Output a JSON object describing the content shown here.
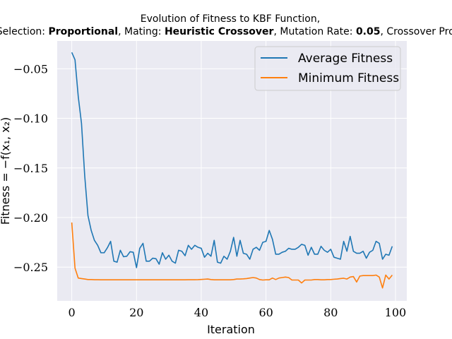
{
  "chart_data": {
    "type": "line",
    "title_line1": "Evolution of Fitness to KBF Function,",
    "title_line2": [
      {
        "text": "Selection: ",
        "bold": false
      },
      {
        "text": "Proportional",
        "bold": true
      },
      {
        "text": ", Mating: ",
        "bold": false
      },
      {
        "text": "Heuristic Crossover",
        "bold": true
      },
      {
        "text": ", Mutation Rate: ",
        "bold": false
      },
      {
        "text": "0.05",
        "bold": true
      },
      {
        "text": ", Crossover Prob: ",
        "bold": false
      }
    ],
    "xlabel": "Iteration",
    "ylabel": "Fitness = −f(x₁, x₂)",
    "xlim": [
      -4.5,
      103.5
    ],
    "ylim": [
      -0.284,
      -0.022
    ],
    "xticks": [
      0,
      20,
      40,
      60,
      80,
      100
    ],
    "xtick_labels": [
      "0",
      "20",
      "40",
      "60",
      "80",
      "100"
    ],
    "yticks": [
      -0.05,
      -0.1,
      -0.15,
      -0.2,
      -0.25
    ],
    "ytick_labels": [
      "−0.05",
      "−0.10",
      "−0.15",
      "−0.20",
      "−0.25"
    ],
    "grid": true,
    "legend_position": "top-right",
    "series": [
      {
        "name": "Average Fitness",
        "color": "#1f77b4",
        "values": [
          -0.0335,
          -0.041,
          -0.078,
          -0.105,
          -0.158,
          -0.198,
          -0.213,
          -0.223,
          -0.228,
          -0.2355,
          -0.2355,
          -0.2305,
          -0.224,
          -0.244,
          -0.245,
          -0.233,
          -0.2395,
          -0.239,
          -0.2345,
          -0.235,
          -0.2505,
          -0.231,
          -0.226,
          -0.244,
          -0.244,
          -0.241,
          -0.2415,
          -0.247,
          -0.2355,
          -0.242,
          -0.238,
          -0.244,
          -0.246,
          -0.233,
          -0.234,
          -0.2385,
          -0.228,
          -0.232,
          -0.228,
          -0.23,
          -0.231,
          -0.24,
          -0.236,
          -0.239,
          -0.223,
          -0.245,
          -0.246,
          -0.239,
          -0.242,
          -0.234,
          -0.22,
          -0.239,
          -0.223,
          -0.236,
          -0.237,
          -0.242,
          -0.232,
          -0.23,
          -0.233,
          -0.225,
          -0.224,
          -0.213,
          -0.222,
          -0.237,
          -0.237,
          -0.235,
          -0.234,
          -0.231,
          -0.232,
          -0.232,
          -0.23,
          -0.227,
          -0.228,
          -0.238,
          -0.23,
          -0.237,
          -0.237,
          -0.229,
          -0.233,
          -0.235,
          -0.232,
          -0.24,
          -0.241,
          -0.242,
          -0.224,
          -0.234,
          -0.219,
          -0.234,
          -0.236,
          -0.236,
          -0.234,
          -0.241,
          -0.235,
          -0.233,
          -0.224,
          -0.226,
          -0.242,
          -0.237,
          -0.238,
          -0.229
        ]
      },
      {
        "name": "Minimum Fitness",
        "color": "#ff7f0e",
        "values": [
          -0.205,
          -0.251,
          -0.261,
          -0.2615,
          -0.262,
          -0.2625,
          -0.2625,
          -0.2627,
          -0.2627,
          -0.2628,
          -0.2628,
          -0.2628,
          -0.2628,
          -0.2628,
          -0.2628,
          -0.2628,
          -0.2628,
          -0.2628,
          -0.2628,
          -0.2628,
          -0.2628,
          -0.2628,
          -0.2628,
          -0.2628,
          -0.2628,
          -0.2628,
          -0.2628,
          -0.2628,
          -0.2628,
          -0.2628,
          -0.2628,
          -0.2628,
          -0.2628,
          -0.2628,
          -0.2628,
          -0.2628,
          -0.2627,
          -0.2627,
          -0.2627,
          -0.2626,
          -0.2624,
          -0.2622,
          -0.262,
          -0.2625,
          -0.2628,
          -0.2628,
          -0.2628,
          -0.2628,
          -0.2628,
          -0.2628,
          -0.2625,
          -0.262,
          -0.262,
          -0.2618,
          -0.2615,
          -0.261,
          -0.2605,
          -0.261,
          -0.2625,
          -0.263,
          -0.2628,
          -0.2628,
          -0.261,
          -0.2625,
          -0.261,
          -0.2605,
          -0.26,
          -0.2605,
          -0.263,
          -0.263,
          -0.263,
          -0.266,
          -0.263,
          -0.263,
          -0.263,
          -0.2625,
          -0.2625,
          -0.2628,
          -0.2628,
          -0.2625,
          -0.2625,
          -0.2622,
          -0.262,
          -0.2615,
          -0.2612,
          -0.262,
          -0.26,
          -0.2595,
          -0.265,
          -0.259,
          -0.2585,
          -0.2585,
          -0.2585,
          -0.2585,
          -0.258,
          -0.26,
          -0.271,
          -0.258,
          -0.262,
          -0.258
        ]
      }
    ]
  }
}
